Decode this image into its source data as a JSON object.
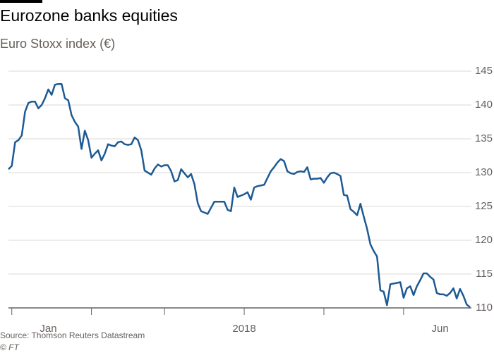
{
  "chart_data": {
    "type": "line",
    "title": "Eurozone banks equities",
    "subtitle": "Euro Stoxx index (€)",
    "source": "Source: Thomson Reuters Datastream",
    "credit": "© FT",
    "series": [
      {
        "color": "#1d5a94",
        "values": [
          130.5,
          131,
          134.5,
          134.8,
          135.5,
          139,
          140.3,
          140.5,
          140.5,
          139.5,
          140,
          141,
          142.3,
          141.5,
          143,
          143.1,
          143.1,
          141,
          140.7,
          138.5,
          137.5,
          136.8,
          133.5,
          136.2,
          134.8,
          132.2,
          132.8,
          133.3,
          131.8,
          132.8,
          134.2,
          134,
          133.9,
          134.5,
          134.6,
          134.2,
          134.1,
          134.2,
          135.2,
          134.8,
          133.3,
          130.3,
          130,
          129.7,
          130.6,
          131.2,
          130.9,
          131.1,
          131.1,
          130.2,
          128.7,
          128.9,
          130.5,
          129.9,
          129.3,
          129.8,
          128.3,
          125.5,
          124.3,
          124.1,
          123.9,
          124.8,
          125.7,
          125.7,
          125.7,
          125.7,
          124.5,
          124.3,
          127.8,
          126.4,
          126.6,
          126.8,
          127.1,
          126,
          127.8,
          128,
          128.1,
          128.2,
          129.2,
          130.2,
          130.8,
          131.5,
          132,
          131.7,
          130.2,
          129.9,
          129.8,
          130.1,
          130.2,
          130.1,
          130.8,
          129,
          129.1,
          129.1,
          129.2,
          128.5,
          129.3,
          129.9,
          130,
          129.8,
          129.5,
          126.7,
          126.6,
          124.6,
          124.2,
          123.7,
          125.4,
          123.5,
          121.7,
          119.4,
          118.4,
          117.6,
          112.6,
          112.4,
          110.4,
          113.5,
          113.6,
          113.7,
          113.8,
          111.5,
          112.9,
          113.2,
          111.9,
          113.2,
          114.1,
          115.1,
          115.1,
          114.6,
          114.2,
          112.2,
          112,
          112,
          111.8,
          112.2,
          112.9,
          111.4,
          112.8,
          111.8,
          110.5,
          110.1
        ]
      }
    ],
    "xlim": [
      0,
      139
    ],
    "xticks": [
      {
        "value": 12,
        "label": "Jan"
      },
      {
        "value": 71,
        "label": "2018"
      },
      {
        "value": 130,
        "label": "Jun"
      }
    ],
    "xtick_marks": [
      1,
      25,
      47,
      71,
      95,
      119
    ],
    "ylim": [
      110,
      145
    ],
    "yticks": [
      110,
      115,
      120,
      125,
      130,
      135,
      140,
      145
    ],
    "grid": true
  }
}
